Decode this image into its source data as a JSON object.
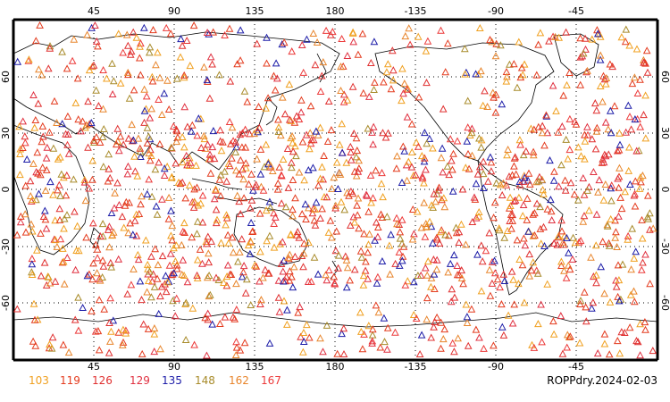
{
  "map": {
    "top_lon_labels": [
      "45",
      "90",
      "135",
      "180",
      "-135",
      "-90",
      "-45"
    ],
    "bottom_lon_labels": [
      "45",
      "90",
      "135",
      "180",
      "-135",
      "-90",
      "-45"
    ],
    "left_lat_labels": [
      "60",
      "30",
      "0",
      "-30",
      "-60"
    ],
    "right_lat_labels": [
      "60",
      "30",
      "0",
      "-30",
      "-60"
    ],
    "title": "ROPPdry.2024-02-03",
    "symbol": "triangle-outline",
    "lon_range": [
      0,
      360
    ],
    "lat_range": [
      -90,
      90
    ],
    "gridlines": "dotted",
    "grid_step_deg": 45
  },
  "legend": [
    {
      "label": "103",
      "color": "#f0a020"
    },
    {
      "label": "119",
      "color": "#e43b1e"
    },
    {
      "label": "126",
      "color": "#e03030"
    },
    {
      "label": "129",
      "color": "#e03040"
    },
    {
      "label": "135",
      "color": "#1c1ca8"
    },
    {
      "label": "148",
      "color": "#a88b2a"
    },
    {
      "label": "162",
      "color": "#e8852c"
    },
    {
      "label": "167",
      "color": "#ec3a3a"
    }
  ]
}
